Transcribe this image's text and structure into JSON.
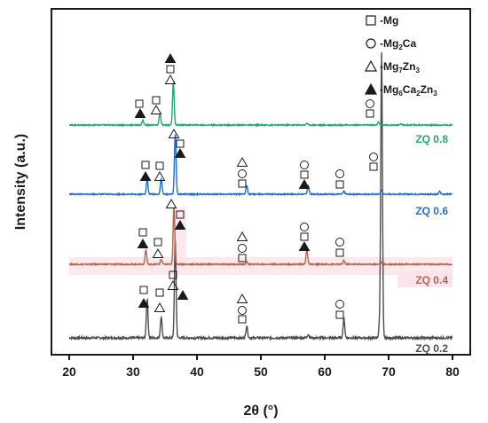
{
  "chart_data": {
    "type": "line",
    "xlabel": "2θ (°)",
    "ylabel": "Intensity (a.u.)",
    "xlim": [
      20,
      80
    ],
    "x_ticks": [
      20,
      30,
      40,
      50,
      60,
      70,
      80
    ],
    "legend": [
      {
        "symbol": "open-square",
        "label": "-Mg"
      },
      {
        "symbol": "open-circle",
        "label": "-Mg",
        "sub": "2",
        "label2": "Ca"
      },
      {
        "symbol": "open-triangle",
        "label": "-Mg",
        "sub": "7",
        "label2": "Zn",
        "sub2": "3"
      },
      {
        "symbol": "filled-triangle",
        "label": "-Mg",
        "sub": "6",
        "label2": "Ca",
        "sub2": "2",
        "label3": "Zn",
        "sub3": "3"
      }
    ],
    "series": [
      {
        "name": "ZQ 0.2",
        "color": "#4d4d4d",
        "peaks": [
          {
            "x": 32.2,
            "h": 0.22
          },
          {
            "x": 34.4,
            "h": 0.12
          },
          {
            "x": 36.6,
            "h": 0.55
          },
          {
            "x": 47.8,
            "h": 0.07
          },
          {
            "x": 57.4,
            "h": 0.02
          },
          {
            "x": 63.0,
            "h": 0.11
          },
          {
            "x": 68.6,
            "h": 0.08
          },
          {
            "x": 68.9,
            "h": 1.6
          }
        ]
      },
      {
        "name": "ZQ 0.4",
        "color": "#b5654a",
        "peaks": [
          {
            "x": 32.0,
            "h": 0.15
          },
          {
            "x": 34.4,
            "h": 0.05
          },
          {
            "x": 36.4,
            "h": 0.59
          },
          {
            "x": 47.8,
            "h": 0.02
          },
          {
            "x": 57.2,
            "h": 0.15
          },
          {
            "x": 63.0,
            "h": 0.04
          },
          {
            "x": 68.9,
            "h": 0.02
          }
        ]
      },
      {
        "name": "ZQ 0.6",
        "color": "#1f6fd1",
        "peaks": [
          {
            "x": 32.2,
            "h": 0.15
          },
          {
            "x": 34.4,
            "h": 0.16
          },
          {
            "x": 36.6,
            "h": 0.62
          },
          {
            "x": 47.8,
            "h": 0.09
          },
          {
            "x": 57.4,
            "h": 0.09
          },
          {
            "x": 63.0,
            "h": 0.03
          },
          {
            "x": 68.9,
            "h": 0.04
          },
          {
            "x": 78.0,
            "h": 0.03
          }
        ]
      },
      {
        "name": "ZQ 0.8",
        "color": "#1eaa6e",
        "peaks": [
          {
            "x": 31.5,
            "h": 0.05
          },
          {
            "x": 34.2,
            "h": 0.12
          },
          {
            "x": 36.3,
            "h": 0.44
          },
          {
            "x": 57.2,
            "h": 0.02
          },
          {
            "x": 68.4,
            "h": 0.03
          },
          {
            "x": 72.0,
            "h": 0.01
          }
        ]
      }
    ]
  }
}
